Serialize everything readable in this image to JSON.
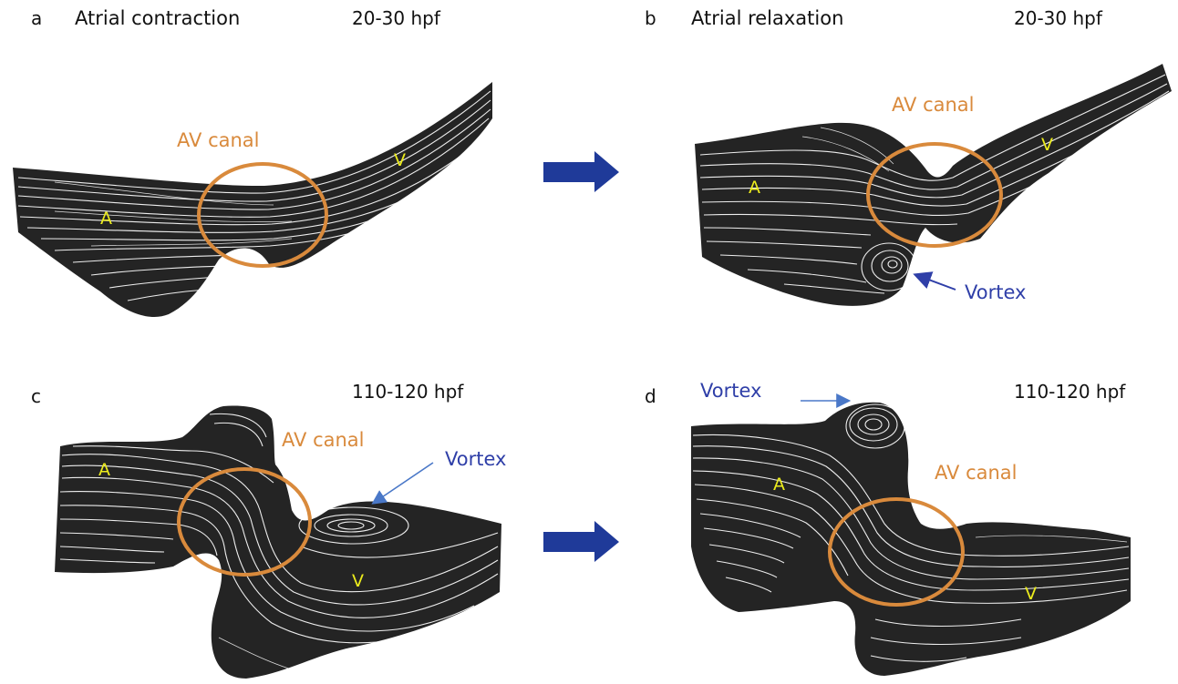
{
  "panels": [
    {
      "letter": "a",
      "title": "Atrial contraction",
      "stage": "20-30 hpf"
    },
    {
      "letter": "b",
      "title": "Atrial relaxation",
      "stage": "20-30 hpf"
    },
    {
      "letter": "c",
      "title": "",
      "stage": "110-120 hpf"
    },
    {
      "letter": "d",
      "title": "",
      "stage": "110-120 hpf"
    }
  ],
  "labels": {
    "atrium": "A",
    "ventricle": "V",
    "av_canal": "AV canal",
    "vortex": "Vortex"
  },
  "colors": {
    "heart_fill": "#242424",
    "streamline": "#ffffff",
    "av_canal_circle": "#d98a3c",
    "chamber_label": "#ecec1c",
    "vortex_label": "#2f3fa8",
    "transition_arrow": "#1f3a99"
  }
}
